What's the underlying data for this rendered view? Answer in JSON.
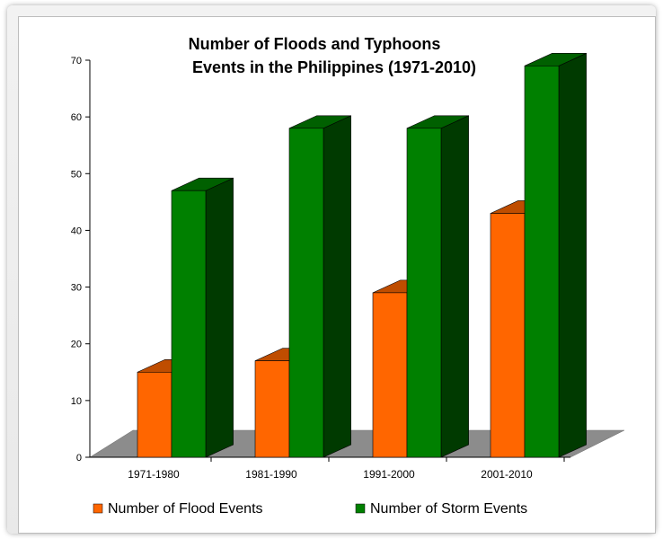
{
  "chart_data": {
    "type": "bar",
    "title_lines": [
      "Number of Floods and Typhoons",
      "Events in the Philippines (1971-2010)"
    ],
    "categories": [
      "1971-1980",
      "1981-1990",
      "1991-2000",
      "2001-2010"
    ],
    "series": [
      {
        "name": "Number of Flood Events",
        "values": [
          15,
          17,
          29,
          43
        ],
        "color": "#ff6600"
      },
      {
        "name": "Number of Storm Events",
        "values": [
          47,
          58,
          58,
          69
        ],
        "color": "#008000"
      }
    ],
    "ylim": [
      0,
      70
    ],
    "yticks": [
      0,
      10,
      20,
      30,
      40,
      50,
      60,
      70
    ],
    "legend_position": "bottom",
    "three_d": true,
    "floor_color": "#8c8c8c"
  }
}
